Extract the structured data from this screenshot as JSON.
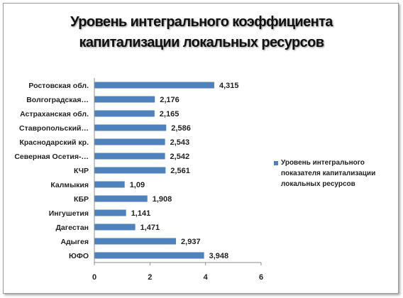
{
  "chart_data": {
    "type": "bar",
    "orientation": "horizontal",
    "title_lines": [
      "Уровень интегрального коэффициента",
      "капитализации локальных ресурсов"
    ],
    "categories": [
      "Ростовская обл.",
      "Волгоградская…",
      "Астраханская обл.",
      "Ставропольский…",
      "Краснодарский кр.",
      "Северная Осетия-…",
      "КЧР",
      "Калмыкия",
      "КБР",
      "Ингушетия",
      "Дагестан",
      "Адыгея",
      "ЮФО"
    ],
    "value_labels": [
      "4,315",
      "2,176",
      "2,165",
      "2,586",
      "2,543",
      "2,542",
      "2,561",
      "1,09",
      "1,908",
      "1,141",
      "1,471",
      "2,937",
      "3,948"
    ],
    "series": [
      {
        "name": "Уровень интегрального показателя капитализации локальных ресурсов",
        "values": [
          4.315,
          2.176,
          2.165,
          2.586,
          2.543,
          2.542,
          2.561,
          1.09,
          1.908,
          1.141,
          1.471,
          2.937,
          3.948
        ],
        "color": "#4f81bd"
      }
    ],
    "xlim": [
      0,
      6
    ],
    "xticks": [
      "0",
      "2",
      "4",
      "6"
    ],
    "grid": false,
    "legend_position": "right"
  }
}
